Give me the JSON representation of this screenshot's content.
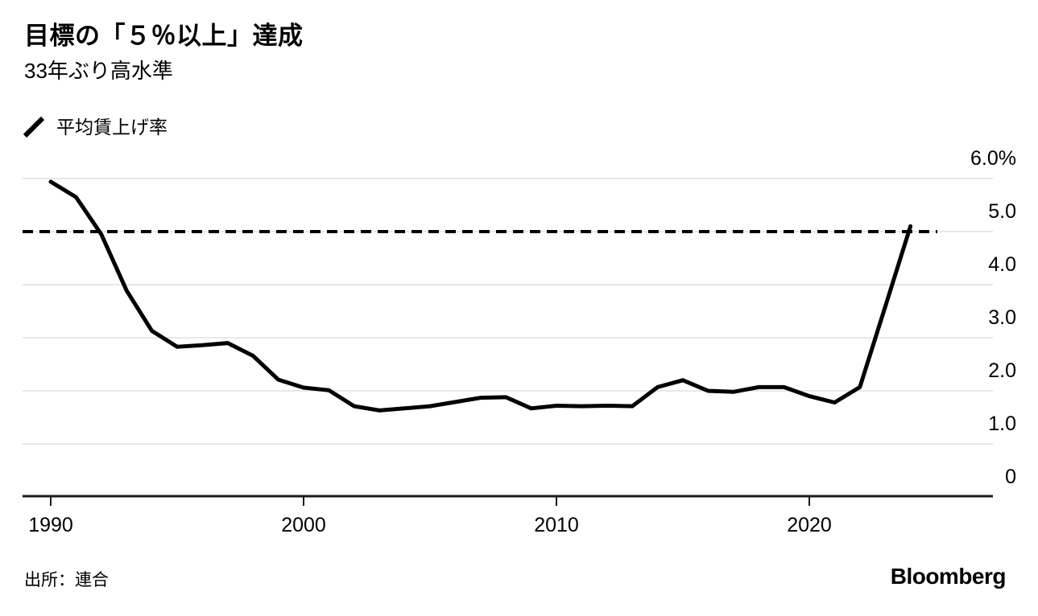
{
  "header": {
    "title": "目標の「５％以上」達成",
    "subtitle": "33年ぶり高水準"
  },
  "legend": {
    "label": "平均賃上げ率"
  },
  "footer": {
    "source": "出所：連合",
    "brand": "Bloomberg"
  },
  "chart_data": {
    "type": "line",
    "title": "目標の「５％以上」達成",
    "subtitle": "33年ぶり高水準",
    "series": [
      {
        "name": "平均賃上げ率",
        "x": [
          1990,
          1991,
          1992,
          1993,
          1994,
          1995,
          1996,
          1997,
          1998,
          1999,
          2000,
          2001,
          2002,
          2003,
          2004,
          2005,
          2006,
          2007,
          2008,
          2009,
          2010,
          2011,
          2012,
          2013,
          2014,
          2015,
          2016,
          2017,
          2018,
          2019,
          2020,
          2021,
          2022,
          2023,
          2024
        ],
        "values": [
          5.94,
          5.65,
          4.95,
          3.89,
          3.13,
          2.83,
          2.86,
          2.9,
          2.66,
          2.21,
          2.06,
          2.01,
          1.71,
          1.63,
          1.67,
          1.71,
          1.79,
          1.87,
          1.88,
          1.67,
          1.72,
          1.71,
          1.72,
          1.71,
          2.07,
          2.2,
          2.0,
          1.98,
          2.07,
          2.07,
          1.9,
          1.78,
          2.07,
          3.58,
          5.1
        ]
      }
    ],
    "xlabel": "",
    "ylabel": "",
    "unit": "%",
    "xlim": [
      1988.9,
      2027.3
    ],
    "ylim": [
      0,
      6
    ],
    "xticks": [
      1990,
      2000,
      2010,
      2020
    ],
    "yticks": [
      {
        "value": 0,
        "label": "0"
      },
      {
        "value": 1,
        "label": "1.0"
      },
      {
        "value": 2,
        "label": "2.0"
      },
      {
        "value": 3,
        "label": "3.0"
      },
      {
        "value": 4,
        "label": "4.0"
      },
      {
        "value": 5,
        "label": "5.0"
      },
      {
        "value": 6,
        "label": "6.0%"
      }
    ],
    "target_line": {
      "value": 5.0,
      "style": "dashed"
    },
    "grid": "horizontal",
    "y_axis_side": "right",
    "legend_position": "top-left",
    "colors": {
      "line": "#000000",
      "target_line": "#000000",
      "grid": "#e0e0e0",
      "axis": "#1a1a1a",
      "text": "#000000"
    }
  }
}
